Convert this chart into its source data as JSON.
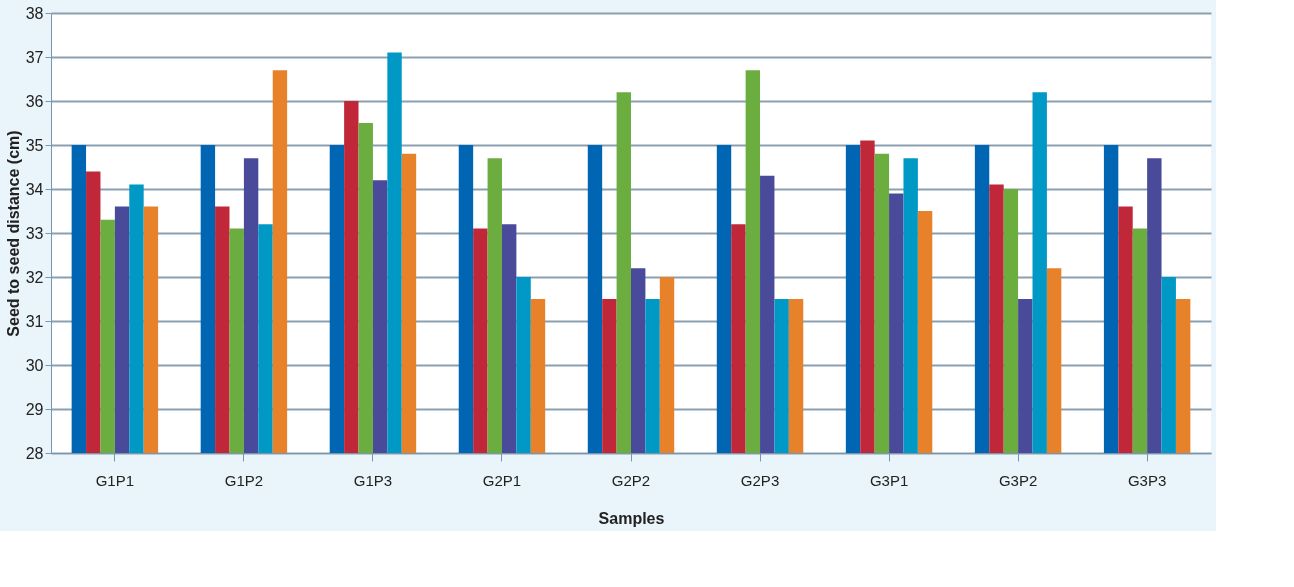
{
  "chart_data": {
    "type": "bar",
    "xlabel": "Samples",
    "ylabel": "Seed to seed distance (cm)",
    "categories": [
      "G1P1",
      "G1P2",
      "G1P3",
      "G2P1",
      "G2P2",
      "G2P3",
      "G3P1",
      "G3P2",
      "G3P3"
    ],
    "series": [
      {
        "color": "#0066b3",
        "values": [
          35,
          35,
          35,
          35,
          35,
          35,
          35,
          35,
          35
        ]
      },
      {
        "color": "#c0283a",
        "values": [
          34.4,
          33.6,
          36.0,
          33.1,
          31.5,
          33.2,
          35.1,
          34.1,
          33.6
        ]
      },
      {
        "color": "#6cad3f",
        "values": [
          33.3,
          33.1,
          35.5,
          34.7,
          36.2,
          36.7,
          34.8,
          34.0,
          33.1
        ]
      },
      {
        "color": "#4a4a9a",
        "values": [
          33.6,
          34.7,
          34.2,
          33.2,
          32.2,
          34.3,
          33.9,
          31.5,
          34.7
        ]
      },
      {
        "color": "#0099c6",
        "values": [
          34.1,
          33.2,
          37.1,
          32.0,
          31.5,
          31.5,
          34.7,
          36.2,
          32.0
        ]
      },
      {
        "color": "#e8822a",
        "values": [
          33.6,
          36.7,
          34.8,
          31.5,
          32.0,
          31.5,
          33.5,
          32.2,
          31.5
        ]
      }
    ],
    "ylim": [
      28,
      38
    ],
    "yticks": [
      28,
      29,
      30,
      31,
      32,
      33,
      34,
      35,
      36,
      37,
      38
    ],
    "grid": "y",
    "legend": false
  }
}
